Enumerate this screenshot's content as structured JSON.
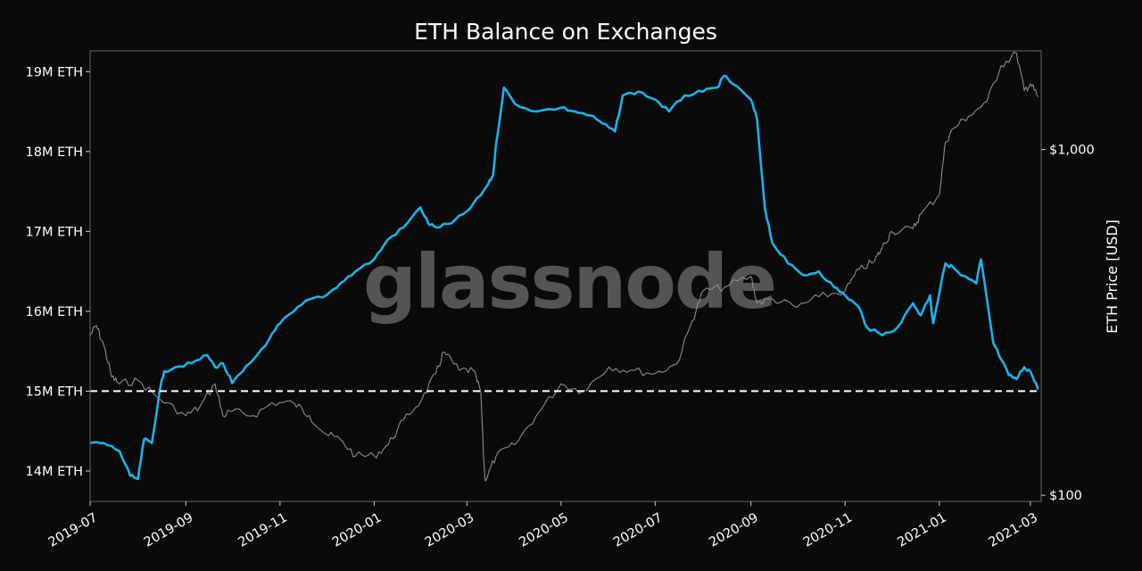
{
  "chart_data": {
    "type": "line",
    "title": "ETH Balance on Exchanges",
    "watermark": "glassnode",
    "ylabel_right": "ETH Price [USD]",
    "x_tick_labels": [
      "2019-07",
      "2019-09",
      "2019-11",
      "2020-01",
      "2020-03",
      "2020-05",
      "2020-07",
      "2020-09",
      "2020-11",
      "2021-01",
      "2021-03"
    ],
    "y_left_tick_labels": [
      "19M ETH",
      "18M ETH",
      "17M ETH",
      "16M ETH",
      "15M ETH",
      "14M ETH"
    ],
    "y_right_tick_labels": [
      "$1,000",
      "$100"
    ],
    "y_left_ticks": [
      19000000,
      18000000,
      17000000,
      16000000,
      15000000,
      14000000
    ],
    "y_right_ticks": [
      1000,
      100
    ],
    "x_range": [
      "2019-07-01",
      "2021-03-08"
    ],
    "y_left_range": [
      13620000,
      19260000
    ],
    "y_right_range": [
      96,
      1930
    ],
    "y_right_scale": "log",
    "reference_line": {
      "value": 15000000,
      "style": "dashed",
      "color": "#ffffff"
    },
    "colors": {
      "balance": "#1ab2ea",
      "price": "#8c8c8c",
      "background": "#0a0a0a",
      "frame": "#666666"
    },
    "series": [
      {
        "axis": "left",
        "x": [
          "2019-07-01",
          "2019-07-10",
          "2019-07-20",
          "2019-07-27",
          "2019-08-01",
          "2019-08-05",
          "2019-08-10",
          "2019-08-15",
          "2019-08-18",
          "2019-08-25",
          "2019-09-05",
          "2019-09-15",
          "2019-09-20",
          "2019-09-25",
          "2019-10-01",
          "2019-10-08",
          "2019-10-15",
          "2019-10-25",
          "2019-11-01",
          "2019-11-10",
          "2019-11-20",
          "2019-12-01",
          "2019-12-10",
          "2019-12-20",
          "2020-01-01",
          "2020-01-10",
          "2020-01-20",
          "2020-01-31",
          "2020-02-05",
          "2020-02-10",
          "2020-02-20",
          "2020-03-01",
          "2020-03-10",
          "2020-03-15",
          "2020-03-18",
          "2020-03-20",
          "2020-03-25",
          "2020-04-01",
          "2020-04-15",
          "2020-05-01",
          "2020-05-10",
          "2020-05-20",
          "2020-05-28",
          "2020-06-05",
          "2020-06-10",
          "2020-06-20",
          "2020-07-01",
          "2020-07-10",
          "2020-07-20",
          "2020-08-01",
          "2020-08-10",
          "2020-08-15",
          "2020-08-20",
          "2020-09-01",
          "2020-09-05",
          "2020-09-10",
          "2020-09-15",
          "2020-09-25",
          "2020-10-05",
          "2020-10-15",
          "2020-10-25",
          "2020-11-01",
          "2020-11-10",
          "2020-11-15",
          "2020-11-25",
          "2020-12-05",
          "2020-12-15",
          "2020-12-20",
          "2020-12-26",
          "2020-12-28",
          "2021-01-05",
          "2021-01-10",
          "2021-01-15",
          "2021-01-25",
          "2021-01-28",
          "2021-02-05",
          "2021-02-10",
          "2021-02-15",
          "2021-02-20",
          "2021-02-25",
          "2021-03-01",
          "2021-03-06"
        ],
        "values": [
          14350000,
          14350000,
          14250000,
          13940000,
          13900000,
          14400000,
          14350000,
          15000000,
          15250000,
          15300000,
          15350000,
          15450000,
          15300000,
          15350000,
          15100000,
          15250000,
          15400000,
          15650000,
          15850000,
          16000000,
          16150000,
          16200000,
          16350000,
          16500000,
          16650000,
          16900000,
          17050000,
          17300000,
          17100000,
          17050000,
          17100000,
          17250000,
          17450000,
          17600000,
          17700000,
          18100000,
          18800000,
          18600000,
          18500000,
          18550000,
          18500000,
          18450000,
          18350000,
          18250000,
          18700000,
          18750000,
          18650000,
          18500000,
          18700000,
          18750000,
          18800000,
          18950000,
          18850000,
          18650000,
          18400000,
          17300000,
          16850000,
          16600000,
          16450000,
          16500000,
          16300000,
          16200000,
          16050000,
          15800000,
          15700000,
          15800000,
          16100000,
          15950000,
          16200000,
          15850000,
          16600000,
          16550000,
          16450000,
          16350000,
          16650000,
          15600000,
          15400000,
          15200000,
          15150000,
          15300000,
          15250000,
          15020000
        ],
        "name": ""
      },
      {
        "axis": "right",
        "x": [
          "2019-07-01",
          "2019-07-05",
          "2019-07-10",
          "2019-07-15",
          "2019-07-20",
          "2019-08-01",
          "2019-08-15",
          "2019-09-01",
          "2019-09-10",
          "2019-09-20",
          "2019-09-25",
          "2019-10-01",
          "2019-10-15",
          "2019-10-27",
          "2019-11-10",
          "2019-11-20",
          "2019-12-01",
          "2019-12-10",
          "2019-12-20",
          "2020-01-01",
          "2020-01-10",
          "2020-01-20",
          "2020-02-01",
          "2020-02-10",
          "2020-02-15",
          "2020-02-25",
          "2020-03-05",
          "2020-03-10",
          "2020-03-12",
          "2020-03-13",
          "2020-03-20",
          "2020-04-01",
          "2020-04-15",
          "2020-05-01",
          "2020-05-15",
          "2020-06-01",
          "2020-06-15",
          "2020-07-01",
          "2020-07-15",
          "2020-07-25",
          "2020-08-01",
          "2020-08-15",
          "2020-09-01",
          "2020-09-05",
          "2020-09-15",
          "2020-10-01",
          "2020-10-15",
          "2020-11-01",
          "2020-11-10",
          "2020-11-20",
          "2020-11-25",
          "2020-12-01",
          "2020-12-15",
          "2020-12-20",
          "2021-01-01",
          "2021-01-05",
          "2021-01-10",
          "2021-01-20",
          "2021-02-01",
          "2021-02-10",
          "2021-02-20",
          "2021-02-25",
          "2021-03-01",
          "2021-03-06"
        ],
        "values": [
          290,
          310,
          270,
          220,
          210,
          215,
          190,
          170,
          180,
          210,
          170,
          175,
          170,
          185,
          185,
          170,
          150,
          145,
          130,
          130,
          140,
          165,
          190,
          225,
          260,
          230,
          230,
          200,
          125,
          110,
          130,
          140,
          170,
          210,
          200,
          235,
          230,
          225,
          240,
          320,
          390,
          400,
          430,
          360,
          370,
          350,
          375,
          390,
          450,
          475,
          520,
          580,
          590,
          650,
          740,
          1050,
          1150,
          1250,
          1380,
          1750,
          1900,
          1480,
          1550,
          1420
        ],
        "name": ""
      }
    ]
  }
}
